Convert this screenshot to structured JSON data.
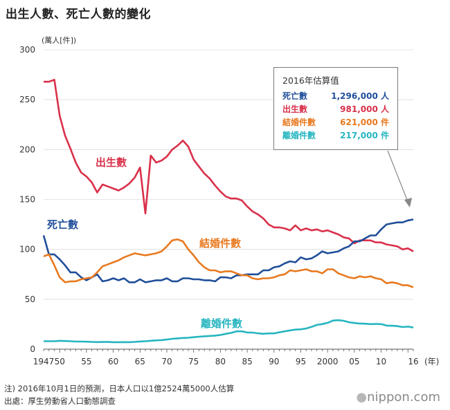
{
  "title": "出生人數、死亡人數的變化",
  "unit_label": "(萬人[件])",
  "notes": [
    "注) 2016年10月1日的預測，日本人口以1億2524萬5000人估算",
    "出處：厚生勞動省人口動態調查"
  ],
  "logo": "nippon.com",
  "estimate_box": {
    "title": "2016年估算值",
    "rows": [
      {
        "label": "死亡數",
        "value": "1,296,000 人",
        "color": "#1f4e99"
      },
      {
        "label": "出生數",
        "value": "981,000 人",
        "color": "#d9304a"
      },
      {
        "label": "結婚件數",
        "value": "621,000 件",
        "color": "#e8791f"
      },
      {
        "label": "離婚件數",
        "value": "217,000 件",
        "color": "#25b5c0"
      }
    ]
  },
  "chart_data": {
    "type": "line",
    "ylim": [
      0,
      300
    ],
    "yticks": [
      0,
      50,
      100,
      150,
      200,
      250,
      300
    ],
    "xlim": [
      1947,
      2016
    ],
    "xticks": [
      {
        "v": 1947,
        "label": "1947"
      },
      {
        "v": 1950,
        "label": "50"
      },
      {
        "v": 1955,
        "label": "55"
      },
      {
        "v": 1960,
        "label": "60"
      },
      {
        "v": 1965,
        "label": "65"
      },
      {
        "v": 1970,
        "label": "70"
      },
      {
        "v": 1975,
        "label": "75"
      },
      {
        "v": 1980,
        "label": "80"
      },
      {
        "v": 1985,
        "label": "85"
      },
      {
        "v": 1990,
        "label": "90"
      },
      {
        "v": 1995,
        "label": "95"
      },
      {
        "v": 2000,
        "label": "2000"
      },
      {
        "v": 2005,
        "label": "05"
      },
      {
        "v": 2010,
        "label": "10"
      },
      {
        "v": 2016,
        "label": "16"
      }
    ],
    "x_unit": "(年)",
    "grid": true,
    "series": [
      {
        "name": "出生數",
        "color": "#d9304a",
        "x": [
          1947,
          1948,
          1949,
          1950,
          1951,
          1952,
          1953,
          1954,
          1955,
          1956,
          1957,
          1958,
          1959,
          1960,
          1961,
          1962,
          1963,
          1964,
          1965,
          1966,
          1967,
          1968,
          1969,
          1970,
          1971,
          1972,
          1973,
          1974,
          1975,
          1976,
          1977,
          1978,
          1979,
          1980,
          1981,
          1982,
          1983,
          1984,
          1985,
          1986,
          1987,
          1988,
          1989,
          1990,
          1991,
          1992,
          1993,
          1994,
          1995,
          1996,
          1997,
          1998,
          1999,
          2000,
          2001,
          2002,
          2003,
          2004,
          2005,
          2006,
          2007,
          2008,
          2009,
          2010,
          2011,
          2012,
          2013,
          2014,
          2015,
          2016
        ],
        "y": [
          268,
          268,
          270,
          234,
          214,
          201,
          187,
          177,
          173,
          167,
          157,
          165,
          163,
          161,
          159,
          162,
          166,
          172,
          182,
          136,
          194,
          187,
          189,
          193,
          200,
          204,
          209,
          203,
          190,
          183,
          176,
          171,
          164,
          158,
          153,
          151,
          151,
          149,
          143,
          138,
          135,
          131,
          125,
          122,
          122,
          121,
          119,
          124,
          119,
          121,
          119,
          120,
          118,
          119,
          117,
          115,
          112,
          111,
          106,
          109,
          109,
          109,
          107,
          107,
          105,
          104,
          103,
          100,
          101,
          98
        ]
      },
      {
        "name": "死亡數",
        "color": "#1f4e99",
        "x": [
          1947,
          1948,
          1949,
          1950,
          1951,
          1952,
          1953,
          1954,
          1955,
          1956,
          1957,
          1958,
          1959,
          1960,
          1961,
          1962,
          1963,
          1964,
          1965,
          1966,
          1967,
          1968,
          1969,
          1970,
          1971,
          1972,
          1973,
          1974,
          1975,
          1976,
          1977,
          1978,
          1979,
          1980,
          1981,
          1982,
          1983,
          1984,
          1985,
          1986,
          1987,
          1988,
          1989,
          1990,
          1991,
          1992,
          1993,
          1994,
          1995,
          1996,
          1997,
          1998,
          1999,
          2000,
          2001,
          2002,
          2003,
          2004,
          2005,
          2006,
          2007,
          2008,
          2009,
          2010,
          2011,
          2012,
          2013,
          2014,
          2015,
          2016
        ],
        "y": [
          114,
          95,
          95,
          90,
          84,
          77,
          77,
          72,
          69,
          72,
          75,
          68,
          69,
          71,
          69,
          71,
          67,
          67,
          70,
          67,
          68,
          69,
          69,
          71,
          68,
          68,
          71,
          71,
          70,
          70,
          69,
          69,
          68,
          72,
          72,
          71,
          74,
          74,
          75,
          75,
          75,
          79,
          79,
          82,
          83,
          86,
          88,
          87,
          92,
          90,
          91,
          94,
          98,
          96,
          97,
          98,
          101,
          103,
          108,
          108,
          111,
          114,
          114,
          120,
          125,
          126,
          127,
          127,
          129,
          130
        ]
      },
      {
        "name": "結婚件數",
        "color": "#e8791f",
        "x": [
          1947,
          1948,
          1949,
          1950,
          1951,
          1952,
          1953,
          1954,
          1955,
          1956,
          1957,
          1958,
          1959,
          1960,
          1961,
          1962,
          1963,
          1964,
          1965,
          1966,
          1967,
          1968,
          1969,
          1970,
          1971,
          1972,
          1973,
          1974,
          1975,
          1976,
          1977,
          1978,
          1979,
          1980,
          1981,
          1982,
          1983,
          1984,
          1985,
          1986,
          1987,
          1988,
          1989,
          1990,
          1991,
          1992,
          1993,
          1994,
          1995,
          1996,
          1997,
          1998,
          1999,
          2000,
          2001,
          2002,
          2003,
          2004,
          2005,
          2006,
          2007,
          2008,
          2009,
          2010,
          2011,
          2012,
          2013,
          2014,
          2015,
          2016
        ],
        "y": [
          93,
          95,
          84,
          72,
          67,
          68,
          68,
          70,
          71,
          72,
          77,
          83,
          85,
          87,
          89,
          92,
          94,
          96,
          95,
          94,
          95,
          96,
          98,
          103,
          109,
          110,
          108,
          100,
          94,
          87,
          82,
          79,
          79,
          77,
          78,
          78,
          76,
          74,
          74,
          71,
          70,
          71,
          71,
          72,
          74,
          75,
          79,
          78,
          79,
          80,
          78,
          78,
          76,
          80,
          80,
          76,
          74,
          72,
          71,
          73,
          72,
          73,
          71,
          70,
          66,
          67,
          66,
          64,
          64,
          62
        ]
      },
      {
        "name": "離婚件數",
        "color": "#25b5c0",
        "x": [
          1947,
          1948,
          1949,
          1950,
          1951,
          1952,
          1953,
          1954,
          1955,
          1956,
          1957,
          1958,
          1959,
          1960,
          1961,
          1962,
          1963,
          1964,
          1965,
          1966,
          1967,
          1968,
          1969,
          1970,
          1971,
          1972,
          1973,
          1974,
          1975,
          1976,
          1977,
          1978,
          1979,
          1980,
          1981,
          1982,
          1983,
          1984,
          1985,
          1986,
          1987,
          1988,
          1989,
          1990,
          1991,
          1992,
          1993,
          1994,
          1995,
          1996,
          1997,
          1998,
          1999,
          2000,
          2001,
          2002,
          2003,
          2004,
          2005,
          2006,
          2007,
          2008,
          2009,
          2010,
          2011,
          2012,
          2013,
          2014,
          2015,
          2016
        ],
        "y": [
          8,
          8,
          8,
          8.4,
          8.2,
          8,
          7.6,
          7.6,
          7.5,
          7.3,
          7.1,
          7.2,
          7.2,
          7,
          7,
          7.1,
          7.0,
          7.3,
          7.7,
          8,
          8.4,
          8.8,
          9.1,
          9.6,
          10.4,
          10.8,
          11.2,
          11.4,
          12,
          12.5,
          12.9,
          13.2,
          13.6,
          14.2,
          15.4,
          16.3,
          17.9,
          17.9,
          16.7,
          16.6,
          15.9,
          15.4,
          15.8,
          15.8,
          16.9,
          17.9,
          18.8,
          19.6,
          19.9,
          20.7,
          22.3,
          24.3,
          25.1,
          26.4,
          28.6,
          29,
          28.4,
          27,
          26.2,
          25.7,
          25.5,
          25.1,
          25.3,
          25.1,
          23.6,
          23.5,
          23.1,
          22.2,
          22.6,
          21.7
        ]
      }
    ],
    "series_labels": [
      "出生數",
      "死亡數",
      "結婚件數",
      "離婚件數"
    ]
  }
}
